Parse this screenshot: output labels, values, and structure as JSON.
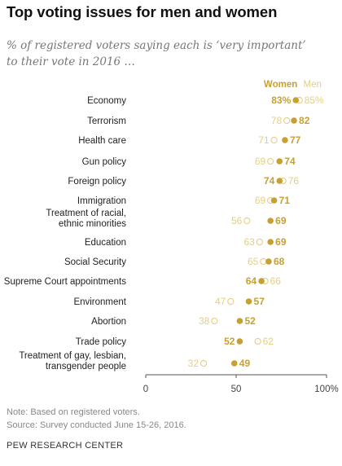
{
  "title": "Top voting issues for men and women",
  "subtitle": "% of registered voters saying each is ‘very important’ to their vote in 2016 …",
  "colors": {
    "women": "#c8a032",
    "men": "#e4cf86",
    "axis": "#555555",
    "text": "#222222"
  },
  "chart_data": {
    "type": "scatter",
    "title": "Top voting issues for men and women",
    "xlim": [
      0,
      100
    ],
    "xticks": [
      "0",
      "50",
      "100%"
    ],
    "legend_position": "top-right",
    "series_labels": {
      "women": "Women",
      "men": "Men"
    },
    "categories": [
      {
        "name": "Economy",
        "women": 83,
        "men": 85,
        "women_label": "83%",
        "men_label": "85%"
      },
      {
        "name": "Terrorism",
        "women": 82,
        "men": 78,
        "women_label": "82",
        "men_label": "78"
      },
      {
        "name": "Health care",
        "women": 77,
        "men": 71,
        "women_label": "77",
        "men_label": "71"
      },
      {
        "name": "Gun policy",
        "women": 74,
        "men": 69,
        "women_label": "74",
        "men_label": "69"
      },
      {
        "name": "Foreign policy",
        "women": 74,
        "men": 76,
        "women_label": "74",
        "men_label": "76"
      },
      {
        "name": "Immigration",
        "women": 71,
        "men": 69,
        "women_label": "71",
        "men_label": "69"
      },
      {
        "name": "Treatment of racial, ethnic minorities",
        "lines": [
          "Treatment of racial,",
          "ethnic minorities"
        ],
        "women": 69,
        "men": 56,
        "women_label": "69",
        "men_label": "56"
      },
      {
        "name": "Education",
        "women": 69,
        "men": 63,
        "women_label": "69",
        "men_label": "63"
      },
      {
        "name": "Social Security",
        "women": 68,
        "men": 65,
        "women_label": "68",
        "men_label": "65"
      },
      {
        "name": "Supreme Court appointments",
        "women": 64,
        "men": 66,
        "women_label": "64",
        "men_label": "66"
      },
      {
        "name": "Environment",
        "women": 57,
        "men": 47,
        "women_label": "57",
        "men_label": "47"
      },
      {
        "name": "Abortion",
        "women": 52,
        "men": 38,
        "women_label": "52",
        "men_label": "38"
      },
      {
        "name": "Trade policy",
        "women": 52,
        "men": 62,
        "women_label": "52",
        "men_label": "62"
      },
      {
        "name": "Treatment of gay, lesbian, transgender people",
        "lines": [
          "Treatment of gay, lesbian,",
          "transgender people"
        ],
        "women": 49,
        "men": 32,
        "women_label": "49",
        "men_label": "32"
      }
    ]
  },
  "note": "Note: Based on registered voters.",
  "source": "Source: Survey conducted June 15-26, 2016.",
  "credit": "PEW RESEARCH CENTER"
}
